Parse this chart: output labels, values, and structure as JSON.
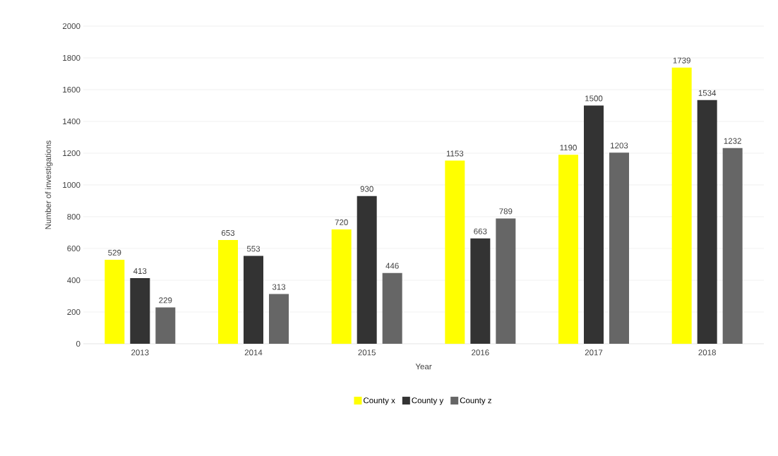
{
  "chart_data": {
    "type": "bar",
    "xlabel": "Year",
    "ylabel": "Number of investigations",
    "categories": [
      "2013",
      "2014",
      "2015",
      "2016",
      "2017",
      "2018"
    ],
    "series": [
      {
        "name": "County x",
        "color": "#ffff00",
        "values": [
          529,
          653,
          720,
          1153,
          1190,
          1739
        ]
      },
      {
        "name": "County y",
        "color": "#333333",
        "values": [
          413,
          553,
          930,
          663,
          1500,
          1534
        ]
      },
      {
        "name": "County z",
        "color": "#666666",
        "values": [
          229,
          313,
          446,
          789,
          1203,
          1232
        ]
      }
    ],
    "ylim": [
      0,
      2000
    ],
    "yticks": [
      0,
      200,
      400,
      600,
      800,
      1000,
      1200,
      1400,
      1600,
      1800,
      2000
    ],
    "grid": "y",
    "legend": "bottom",
    "data_labels": true
  }
}
